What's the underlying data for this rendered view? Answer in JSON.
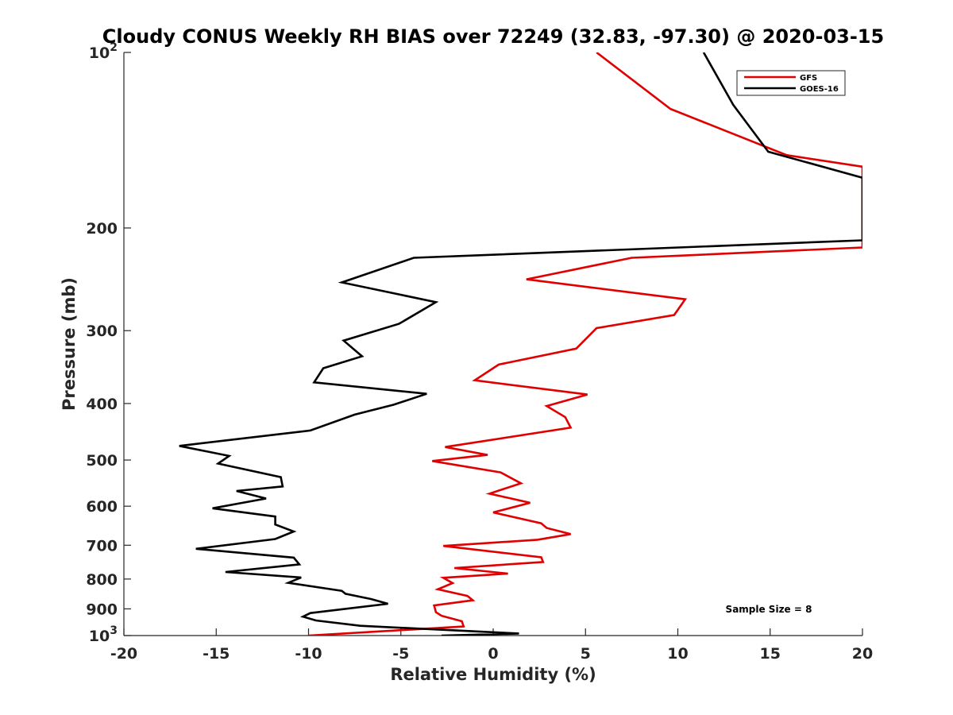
{
  "chart_data": {
    "type": "line",
    "title": "Cloudy CONUS Weekly RH BIAS over 72249 (32.83, -97.30) @ 2020-03-15",
    "xlabel": "Relative Humidity (%)",
    "ylabel": "Pressure (mb)",
    "xlim": [
      -20,
      20
    ],
    "ylim": [
      100,
      1000
    ],
    "y_scale": "log",
    "y_reversed": true,
    "grid": false,
    "legend_position": "top-right",
    "x_ticks": [
      "-20",
      "-15",
      "-10",
      "-5",
      "0",
      "5",
      "10",
      "15",
      "20"
    ],
    "y_ticks": [
      {
        "value": 100,
        "base": "10",
        "exp": "2"
      },
      {
        "value": 200,
        "label": "200"
      },
      {
        "value": 300,
        "label": "300"
      },
      {
        "value": 400,
        "label": "400"
      },
      {
        "value": 500,
        "label": "500"
      },
      {
        "value": 600,
        "label": "600"
      },
      {
        "value": 700,
        "label": "700"
      },
      {
        "value": 800,
        "label": "800"
      },
      {
        "value": 900,
        "label": "900"
      },
      {
        "value": 1000,
        "base": "10",
        "exp": "3"
      }
    ],
    "annotation": "Sample Size = 8",
    "series": [
      {
        "name": "GFS",
        "color": "#e00000",
        "points": [
          [
            5.6,
            100
          ],
          [
            9.6,
            125
          ],
          [
            15.9,
            150
          ],
          [
            20.0,
            157
          ],
          [
            20.0,
            216
          ],
          [
            7.5,
            225
          ],
          [
            1.8,
            245
          ],
          [
            10.4,
            265
          ],
          [
            9.8,
            282
          ],
          [
            5.6,
            297
          ],
          [
            4.5,
            322
          ],
          [
            0.3,
            343
          ],
          [
            -1.0,
            365
          ],
          [
            5.1,
            386
          ],
          [
            2.9,
            404
          ],
          [
            3.9,
            422
          ],
          [
            4.2,
            440
          ],
          [
            -2.6,
            475
          ],
          [
            -0.3,
            490
          ],
          [
            -3.3,
            502
          ],
          [
            0.4,
            525
          ],
          [
            1.5,
            548
          ],
          [
            -0.2,
            571
          ],
          [
            2.0,
            592
          ],
          [
            0.0,
            615
          ],
          [
            2.6,
            642
          ],
          [
            2.9,
            654
          ],
          [
            4.2,
            670
          ],
          [
            2.4,
            685
          ],
          [
            -2.7,
            702
          ],
          [
            2.6,
            734
          ],
          [
            2.7,
            748
          ],
          [
            -2.1,
            766
          ],
          [
            0.8,
            783
          ],
          [
            -2.7,
            796
          ],
          [
            -2.2,
            813
          ],
          [
            -3.0,
            833
          ],
          [
            -1.4,
            855
          ],
          [
            -1.1,
            870
          ],
          [
            -3.2,
            888
          ],
          [
            -3.1,
            912
          ],
          [
            -2.8,
            925
          ],
          [
            -1.7,
            945
          ],
          [
            -1.6,
            965
          ],
          [
            -10.0,
            1000
          ]
        ]
      },
      {
        "name": "GOES-16",
        "color": "#000000",
        "points": [
          [
            11.4,
            100
          ],
          [
            13.0,
            123
          ],
          [
            14.9,
            148
          ],
          [
            20.0,
            164
          ],
          [
            20.0,
            210
          ],
          [
            -4.3,
            225
          ],
          [
            -8.2,
            248
          ],
          [
            -3.1,
            268
          ],
          [
            -5.1,
            292
          ],
          [
            -8.1,
            312
          ],
          [
            -7.1,
            332
          ],
          [
            -9.2,
            348
          ],
          [
            -9.7,
            368
          ],
          [
            -3.6,
            385
          ],
          [
            -5.4,
            402
          ],
          [
            -7.5,
            418
          ],
          [
            -9.9,
            445
          ],
          [
            -17.0,
            473
          ],
          [
            -14.3,
            492
          ],
          [
            -14.9,
            507
          ],
          [
            -11.5,
            535
          ],
          [
            -11.4,
            555
          ],
          [
            -13.9,
            565
          ],
          [
            -12.3,
            582
          ],
          [
            -15.2,
            605
          ],
          [
            -11.8,
            625
          ],
          [
            -11.8,
            645
          ],
          [
            -10.8,
            663
          ],
          [
            -11.8,
            683
          ],
          [
            -16.1,
            710
          ],
          [
            -10.8,
            735
          ],
          [
            -10.5,
            755
          ],
          [
            -14.5,
            778
          ],
          [
            -10.4,
            795
          ],
          [
            -11.1,
            812
          ],
          [
            -8.2,
            838
          ],
          [
            -8.0,
            848
          ],
          [
            -6.6,
            866
          ],
          [
            -5.7,
            882
          ],
          [
            -9.9,
            915
          ],
          [
            -10.3,
            928
          ],
          [
            -9.6,
            942
          ],
          [
            -7.2,
            962
          ],
          [
            1.4,
            992
          ],
          [
            -2.8,
            1000
          ]
        ]
      }
    ]
  }
}
